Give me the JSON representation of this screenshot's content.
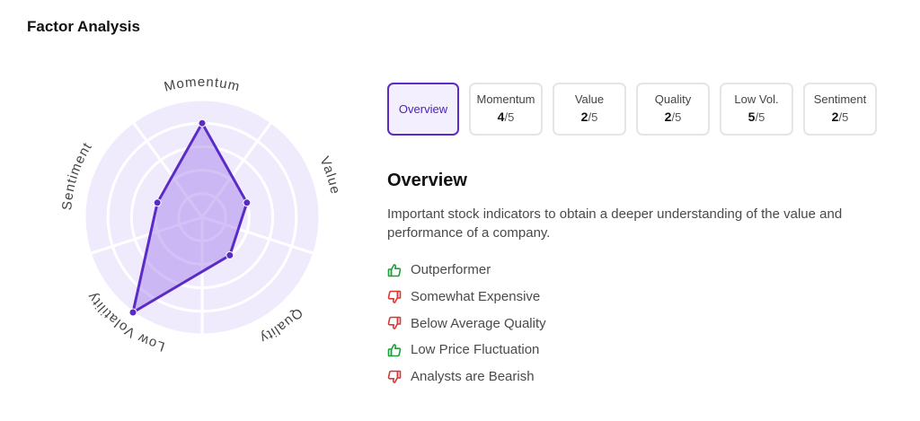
{
  "page": {
    "title": "Factor Analysis"
  },
  "colors": {
    "accent": "#5b2bc6",
    "positive": "#1e9e3a",
    "negative": "#d93636",
    "radar_bg": "#efebfc"
  },
  "chart_data": {
    "type": "radar",
    "axes": [
      "Momentum",
      "Value",
      "Quality",
      "Low Volatility",
      "Sentiment"
    ],
    "values": [
      4,
      2,
      2,
      5,
      2
    ],
    "rlim": [
      0,
      5
    ],
    "grid": true
  },
  "tabs": [
    {
      "label": "Overview",
      "score": "",
      "max": "",
      "active": true
    },
    {
      "label": "Momentum",
      "score": "4",
      "max": "/5"
    },
    {
      "label": "Value",
      "score": "2",
      "max": "/5"
    },
    {
      "label": "Quality",
      "score": "2",
      "max": "/5"
    },
    {
      "label": "Low Vol.",
      "score": "5",
      "max": "/5"
    },
    {
      "label": "Sentiment",
      "score": "2",
      "max": "/5"
    }
  ],
  "overview": {
    "heading": "Overview",
    "description": "Important stock indicators to obtain a deeper understanding of the value and performance of a company.",
    "signals": [
      {
        "text": "Outperformer",
        "icon": "thumbs-up-icon",
        "sentiment": "positive"
      },
      {
        "text": "Somewhat Expensive",
        "icon": "thumbs-down-icon",
        "sentiment": "negative"
      },
      {
        "text": "Below Average Quality",
        "icon": "thumbs-down-icon",
        "sentiment": "negative"
      },
      {
        "text": "Low Price Fluctuation",
        "icon": "thumbs-up-icon",
        "sentiment": "positive"
      },
      {
        "text": "Analysts are Bearish",
        "icon": "thumbs-down-icon",
        "sentiment": "negative"
      }
    ]
  }
}
